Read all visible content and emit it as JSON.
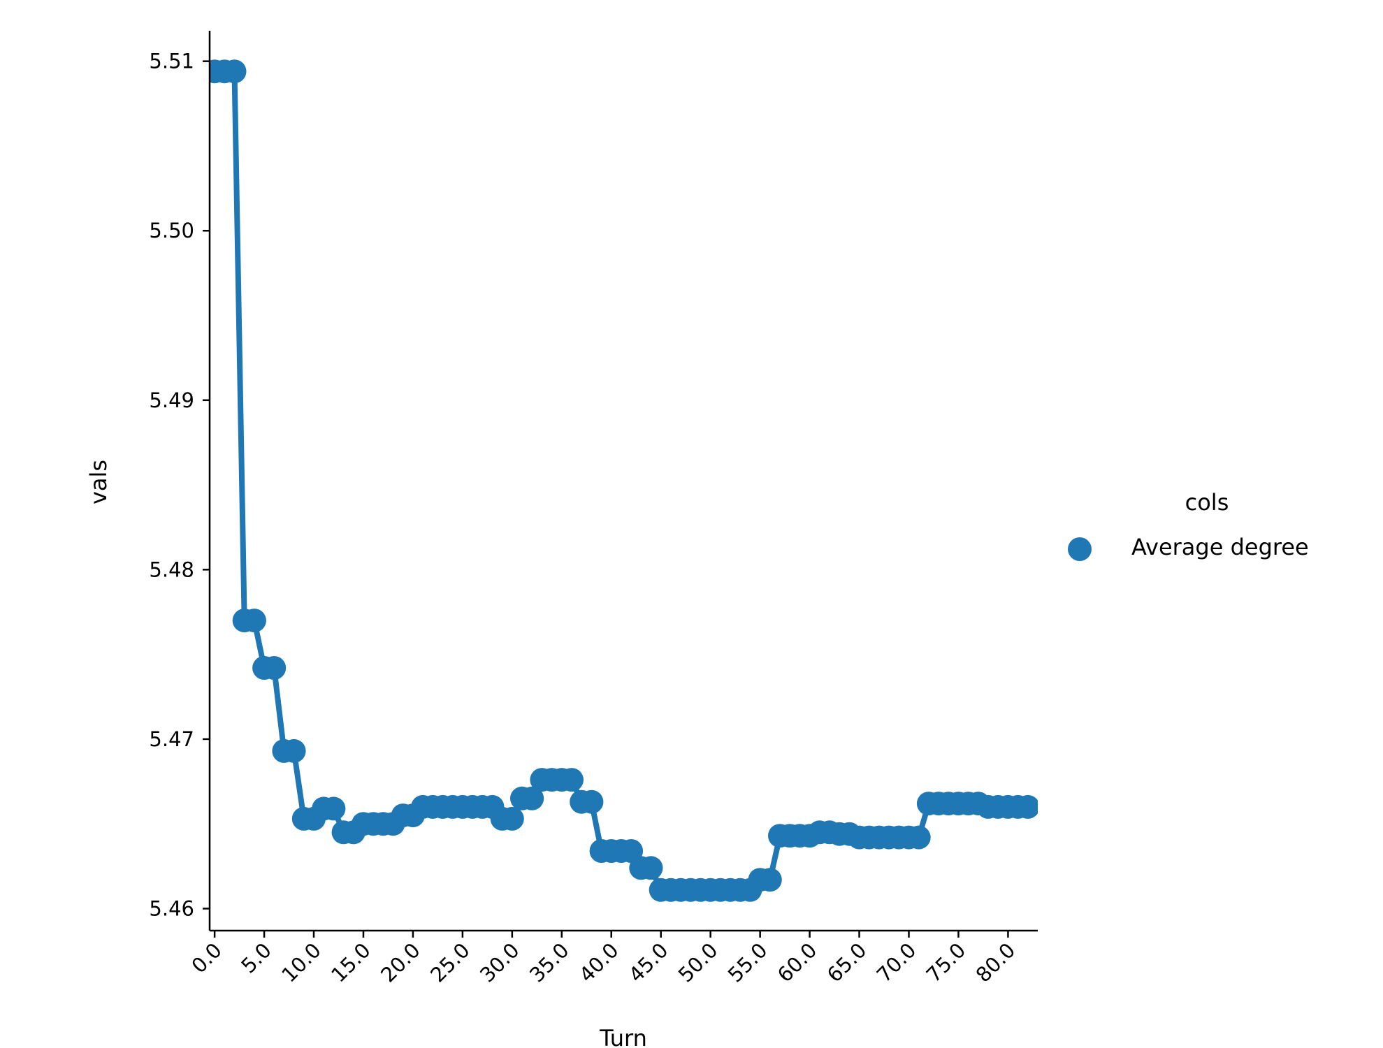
{
  "chart_data": {
    "type": "line",
    "xlabel": "Turn",
    "ylabel": "vals",
    "xlim": [
      -0.5,
      83.0
    ],
    "ylim": [
      5.4587,
      5.5118
    ],
    "x_ticks": [
      0,
      5,
      10,
      15,
      20,
      25,
      30,
      35,
      40,
      45,
      50,
      55,
      60,
      65,
      70,
      75,
      80
    ],
    "x_tick_labels": [
      "0.0",
      "5.0",
      "10.0",
      "15.0",
      "20.0",
      "25.0",
      "30.0",
      "35.0",
      "40.0",
      "45.0",
      "50.0",
      "55.0",
      "60.0",
      "65.0",
      "70.0",
      "75.0",
      "80.0"
    ],
    "y_ticks": [
      5.46,
      5.47,
      5.48,
      5.49,
      5.5,
      5.51
    ],
    "y_tick_labels": [
      "5.46",
      "5.47",
      "5.48",
      "5.49",
      "5.50",
      "5.51"
    ],
    "grid": false,
    "legend": {
      "title": "cols",
      "position": "right",
      "entries": [
        "Average degree"
      ]
    },
    "series": [
      {
        "name": "Average degree",
        "color": "#1f77b4",
        "x": [
          0,
          1,
          2,
          3,
          4,
          5,
          6,
          7,
          8,
          9,
          10,
          11,
          12,
          13,
          14,
          15,
          16,
          17,
          18,
          19,
          20,
          21,
          22,
          23,
          24,
          25,
          26,
          27,
          28,
          29,
          30,
          31,
          32,
          33,
          34,
          35,
          36,
          37,
          38,
          39,
          40,
          41,
          42,
          43,
          44,
          45,
          46,
          47,
          48,
          49,
          50,
          51,
          52,
          53,
          54,
          55,
          56,
          57,
          58,
          59,
          60,
          61,
          62,
          63,
          64,
          65,
          66,
          67,
          68,
          69,
          70,
          71,
          72,
          73,
          74,
          75,
          76,
          77,
          78,
          79,
          80,
          81,
          82
        ],
        "y": [
          5.5094,
          5.5094,
          5.5094,
          5.477,
          5.477,
          5.4742,
          5.4742,
          5.4693,
          5.4693,
          5.4653,
          5.4653,
          5.4659,
          5.4659,
          5.4645,
          5.4645,
          5.465,
          5.465,
          5.465,
          5.465,
          5.4655,
          5.4655,
          5.466,
          5.466,
          5.466,
          5.466,
          5.466,
          5.466,
          5.466,
          5.466,
          5.4653,
          5.4653,
          5.4665,
          5.4665,
          5.4676,
          5.4676,
          5.4676,
          5.4676,
          5.4663,
          5.4663,
          5.4634,
          5.4634,
          5.4634,
          5.4634,
          5.4624,
          5.4624,
          5.4611,
          5.4611,
          5.4611,
          5.4611,
          5.4611,
          5.4611,
          5.4611,
          5.4611,
          5.4611,
          5.4611,
          5.4617,
          5.4617,
          5.4643,
          5.4643,
          5.4643,
          5.4643,
          5.4645,
          5.4645,
          5.4644,
          5.4644,
          5.4642,
          5.4642,
          5.4642,
          5.4642,
          5.4642,
          5.4642,
          5.4642,
          5.4662,
          5.4662,
          5.4662,
          5.4662,
          5.4662,
          5.4662,
          5.466,
          5.466,
          5.466,
          5.466,
          5.466
        ]
      }
    ]
  }
}
